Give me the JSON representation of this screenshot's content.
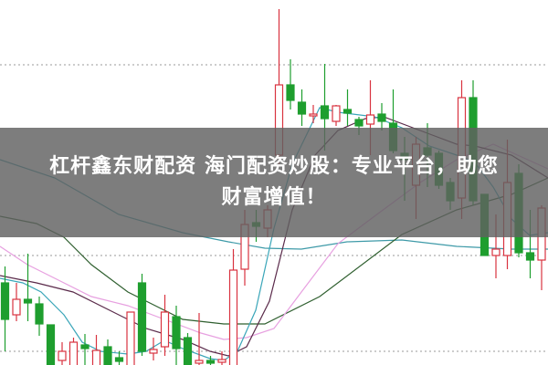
{
  "banner": {
    "line1": "杠杆鑫东财配资  海门配资炒股：专业平台，助您",
    "line2": "财富增值！"
  },
  "colors": {
    "up": "#d9333f",
    "down": "#1e9e2e",
    "ma10": "#3aa6b9",
    "ma20": "#5a2a4a",
    "ma30": "#e7a0e0",
    "ma60": "#2f5f2f",
    "ma120": "#3e9aa8",
    "grid": "#999999"
  },
  "chart_data": {
    "type": "candlestick",
    "grid": true,
    "grid_levels": [
      32.9,
      12,
      1.5
    ],
    "ylim": [
      0,
      40
    ],
    "xlim": [
      -0.4,
      47.6
    ],
    "candles": [
      [
        9.0,
        5.0,
        10.8,
        1.5
      ],
      [
        5.5,
        7.2,
        9.0,
        4.8
      ],
      [
        7.2,
        6.8,
        12.2,
        4.8
      ],
      [
        6.7,
        4.5,
        7.5,
        3.2
      ],
      [
        4.4,
        -1,
        4.4,
        -2
      ],
      [
        0.5,
        1.5,
        2.5,
        -1
      ],
      [
        -0.5,
        2.5,
        3.0,
        -1
      ],
      [
        2.2,
        1.8,
        3.4,
        -1
      ],
      [
        -0.5,
        1.6,
        3.3,
        -1
      ],
      [
        2.0,
        -0.5,
        2.8,
        -1
      ],
      [
        0.8,
        0.4,
        1.5,
        -1
      ],
      [
        -0.5,
        5.8,
        5.8,
        -1
      ],
      [
        9.0,
        1.5,
        10.0,
        1.0
      ],
      [
        1.3,
        1.7,
        3.0,
        0.5
      ],
      [
        2.0,
        5.8,
        7.7,
        1.0
      ],
      [
        5.3,
        1.8,
        6.5,
        -1
      ],
      [
        3.0,
        -0.5,
        3.5,
        -1
      ],
      [
        0.2,
        0.5,
        5.7,
        -1
      ],
      [
        0.5,
        0.2,
        1.0,
        -1
      ],
      [
        0.3,
        0.6,
        1.5,
        -1
      ],
      [
        -0.5,
        10.4,
        12.7,
        -1
      ],
      [
        10.5,
        15.4,
        17.0,
        8.7
      ],
      [
        15.6,
        15.2,
        17.0,
        13.5
      ],
      [
        15.0,
        17.0,
        17.5,
        14.0
      ],
      [
        23.0,
        30.7,
        39.0,
        22.0
      ],
      [
        30.7,
        29.0,
        33.5,
        28.0
      ],
      [
        28.8,
        27.5,
        30.2,
        26.2
      ],
      [
        27.3,
        27.5,
        28.5,
        26.5
      ],
      [
        28.4,
        27.0,
        33.0,
        23.5
      ],
      [
        26.7,
        28.4,
        28.5,
        26.2
      ],
      [
        28.0,
        27.6,
        30.2,
        26.2
      ],
      [
        26.9,
        26.2,
        27.2,
        25.2
      ],
      [
        26.4,
        27.4,
        31.2,
        23.0
      ],
      [
        27.5,
        26.7,
        28.7,
        25.7
      ],
      [
        26.5,
        23.5,
        30.2,
        23.2
      ],
      [
        23.2,
        22.5,
        25.0,
        18.0
      ],
      [
        19.7,
        24.2,
        25.0,
        16.0
      ],
      [
        23.8,
        23.0,
        26.5,
        19.5
      ],
      [
        23.2,
        19.7,
        23.5,
        19.3
      ],
      [
        20.0,
        18.0,
        20.5,
        17.0
      ],
      [
        18.3,
        29.3,
        31.2,
        16.0
      ],
      [
        29.3,
        18.0,
        31.2,
        17.5
      ],
      [
        18.7,
        12.0,
        18.7,
        12.0
      ],
      [
        12.0,
        12.7,
        16.5,
        9.5
      ],
      [
        12.0,
        20.0,
        24.7,
        10.5
      ],
      [
        21.0,
        12.3,
        22.0,
        11.8
      ],
      [
        12.3,
        11.5,
        17.0,
        9.5
      ],
      [
        11.5,
        17.2,
        17.5,
        8.2
      ]
    ],
    "candle_format": [
      "open",
      "close",
      "high",
      "low"
    ],
    "moving_averages": [
      {
        "color_key": "ma120",
        "points": [
          [
            -0.4,
            22.5
          ],
          [
            4.4,
            20.5
          ],
          [
            10,
            16.5
          ],
          [
            15.6,
            14.5
          ],
          [
            19.6,
            13.5
          ],
          [
            22.8,
            12.8
          ],
          [
            26,
            12.7
          ],
          [
            30,
            13.5
          ],
          [
            34.8,
            13.7
          ],
          [
            39.6,
            13
          ],
          [
            44.4,
            12.7
          ],
          [
            47.6,
            12.7
          ]
        ]
      },
      {
        "color_key": "ma60",
        "points": [
          [
            -0.4,
            16.3
          ],
          [
            2.8,
            15.5
          ],
          [
            5.2,
            14
          ],
          [
            7.6,
            11
          ],
          [
            10.8,
            8
          ],
          [
            13.2,
            6.5
          ],
          [
            15.6,
            5
          ],
          [
            19.2,
            4.5
          ],
          [
            22.8,
            4.5
          ],
          [
            27.6,
            7.5
          ],
          [
            34.8,
            14.3
          ],
          [
            39.6,
            17
          ],
          [
            44.4,
            18.7
          ],
          [
            47.6,
            20.5
          ]
        ]
      },
      {
        "color_key": "ma30",
        "points": [
          [
            -0.4,
            13
          ],
          [
            2,
            11
          ],
          [
            4.4,
            9.5
          ],
          [
            7.6,
            7.5
          ],
          [
            10.8,
            6.5
          ],
          [
            14,
            5
          ],
          [
            17.2,
            3.5
          ],
          [
            19.2,
            2.8
          ],
          [
            21.2,
            3
          ],
          [
            23.6,
            4
          ],
          [
            26,
            8
          ],
          [
            29.2,
            13.3
          ],
          [
            32.4,
            16.3
          ],
          [
            36.4,
            20
          ],
          [
            39.6,
            22.5
          ],
          [
            42.8,
            24.2
          ],
          [
            47.6,
            21.5
          ]
        ]
      },
      {
        "color_key": "ma20",
        "points": [
          [
            -0.4,
            9.8
          ],
          [
            2.8,
            9
          ],
          [
            6,
            8
          ],
          [
            9.2,
            6
          ],
          [
            12.4,
            4
          ],
          [
            15.6,
            2.8
          ],
          [
            18,
            1.5
          ],
          [
            19.6,
            1
          ],
          [
            21.2,
            2
          ],
          [
            23.2,
            7
          ],
          [
            25.2,
            17
          ],
          [
            27.2,
            23
          ],
          [
            29.2,
            25.7
          ],
          [
            31.6,
            27
          ],
          [
            33.2,
            27.2
          ],
          [
            36.4,
            25.7
          ],
          [
            39.6,
            24.2
          ],
          [
            41.2,
            24
          ],
          [
            44.4,
            23
          ],
          [
            47.6,
            20.5
          ]
        ]
      },
      {
        "color_key": "ma10",
        "points": [
          [
            -0.4,
            9.5
          ],
          [
            1.6,
            9
          ],
          [
            3.2,
            8
          ],
          [
            5.2,
            5.5
          ],
          [
            6.8,
            2.5
          ],
          [
            8.4,
            1.5
          ],
          [
            10.8,
            1.2
          ],
          [
            12.4,
            1.5
          ],
          [
            14,
            2.7
          ],
          [
            15.6,
            1.8
          ],
          [
            18,
            0.7
          ],
          [
            19.2,
            0.5
          ],
          [
            20.4,
            1.5
          ],
          [
            22,
            6
          ],
          [
            23.6,
            15
          ],
          [
            25.2,
            22
          ],
          [
            27.6,
            28.2
          ],
          [
            29.2,
            27.7
          ],
          [
            32.4,
            27.2
          ],
          [
            34.8,
            26
          ],
          [
            37.2,
            24
          ],
          [
            39.6,
            23
          ],
          [
            41.2,
            22.2
          ],
          [
            42.8,
            19.5
          ],
          [
            44.4,
            16
          ],
          [
            46,
            14.2
          ],
          [
            47.6,
            14.5
          ]
        ]
      }
    ]
  }
}
